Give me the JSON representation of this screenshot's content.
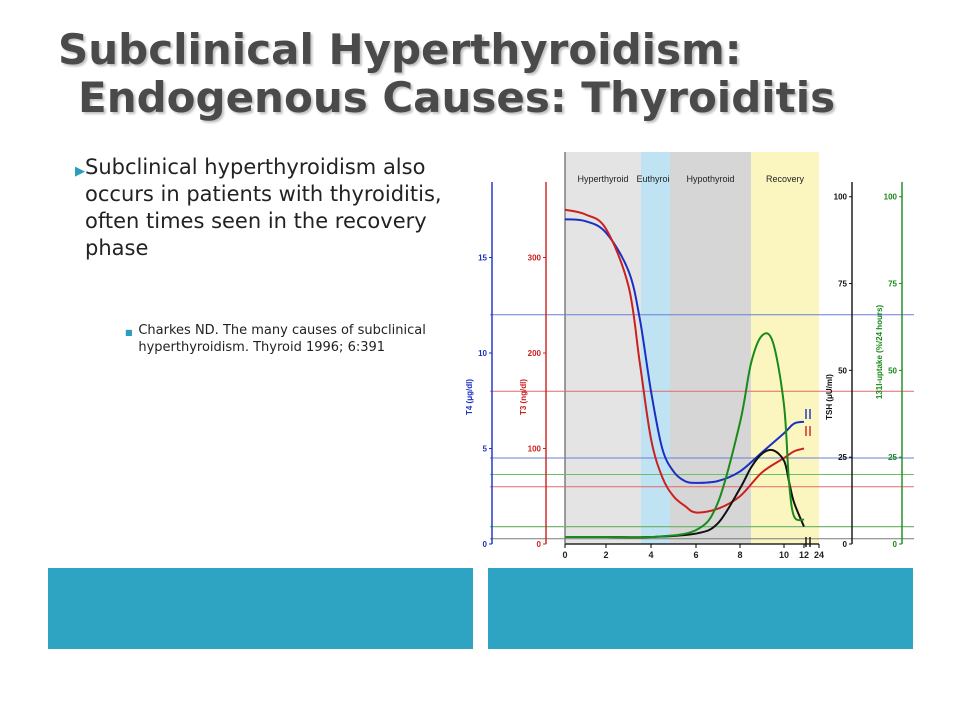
{
  "slide": {
    "title_line1": "Subclinical Hyperthyroidism:",
    "title_line2": "Endogenous Causes: Thyroiditis",
    "bullet_main": "Subclinical hyperthyroidism also occurs in patients with thyroiditis, often times seen in the recovery phase",
    "bullet_ref": "Charkes ND. The many causes of subclinical hyperthyroidism. Thyroid 1996; 6:391",
    "accent_color": "#2ea3c2",
    "title_color": "#4a4a4a"
  },
  "chart_data": {
    "type": "line",
    "phases": [
      "Hyperthyroid",
      "Euthyroid",
      "Hypothyroid",
      "Recovery"
    ],
    "x_ticks": [
      "0",
      "2",
      "4",
      "6",
      "8",
      "10",
      "12",
      "24"
    ],
    "axes": {
      "t4": {
        "label": "T4 (μg/dl)",
        "ticks": [
          "0",
          "5",
          "10",
          "15"
        ],
        "color": "#1a2fc4"
      },
      "t3": {
        "label": "T3 (ng/dl)",
        "ticks": [
          "0",
          "100",
          "200",
          "300"
        ],
        "color": "#cc2020"
      },
      "tsh": {
        "label": "TSH (μU/ml)",
        "ticks": [
          "0",
          "25",
          "50",
          "75",
          "100"
        ],
        "color": "#111111"
      },
      "upt": {
        "label": "131I-uptake (%/24 hours)",
        "ticks": [
          "0",
          "25",
          "50",
          "75",
          "100"
        ],
        "color": "#1a8a1a"
      }
    },
    "series": [
      {
        "name": "T4",
        "color": "#1a2fc4",
        "x": [
          0,
          1,
          2,
          3,
          3.5,
          4,
          4.5,
          5,
          5.5,
          6,
          7,
          8,
          9,
          10,
          11,
          12
        ],
        "y": [
          17.0,
          16.9,
          16.3,
          14.3,
          11.8,
          8.0,
          5.0,
          3.8,
          3.3,
          3.2,
          3.3,
          3.8,
          4.8,
          5.8,
          6.3,
          6.4
        ]
      },
      {
        "name": "T3",
        "color": "#cc2020",
        "x": [
          0,
          1,
          2,
          3,
          3.5,
          4,
          4.5,
          5,
          5.5,
          6,
          7,
          8,
          9,
          10,
          11,
          12
        ],
        "y": [
          350,
          345,
          330,
          270,
          190,
          110,
          70,
          50,
          40,
          33,
          37,
          50,
          75,
          90,
          97,
          100
        ]
      },
      {
        "name": "TSH",
        "color": "#111111",
        "x": [
          0,
          2,
          4,
          6,
          7,
          8,
          8.5,
          9,
          9.5,
          10,
          10.5,
          11,
          12
        ],
        "y": [
          2,
          2,
          2,
          3,
          6,
          16,
          22,
          26,
          27,
          24,
          18,
          12,
          5
        ]
      },
      {
        "name": "131I-uptake",
        "color": "#1a8a1a",
        "x": [
          0,
          2,
          4,
          6,
          7,
          8,
          8.5,
          9,
          9.5,
          10,
          10.5,
          11,
          12
        ],
        "y": [
          2,
          2,
          2,
          4,
          12,
          35,
          52,
          60,
          58,
          40,
          18,
          8,
          7
        ]
      }
    ],
    "reference_lines": [
      {
        "axis": "t4",
        "values": [
          12,
          4.5
        ],
        "color": "#6a7fd8"
      },
      {
        "axis": "t3",
        "values": [
          160,
          60
        ],
        "color": "#e06a6a"
      },
      {
        "axis": "tsh",
        "values": [
          5,
          1.5
        ],
        "color": "#7a7a7a"
      },
      {
        "axis": "upt",
        "values": [
          20,
          5
        ],
        "color": "#6ac06a"
      }
    ]
  }
}
